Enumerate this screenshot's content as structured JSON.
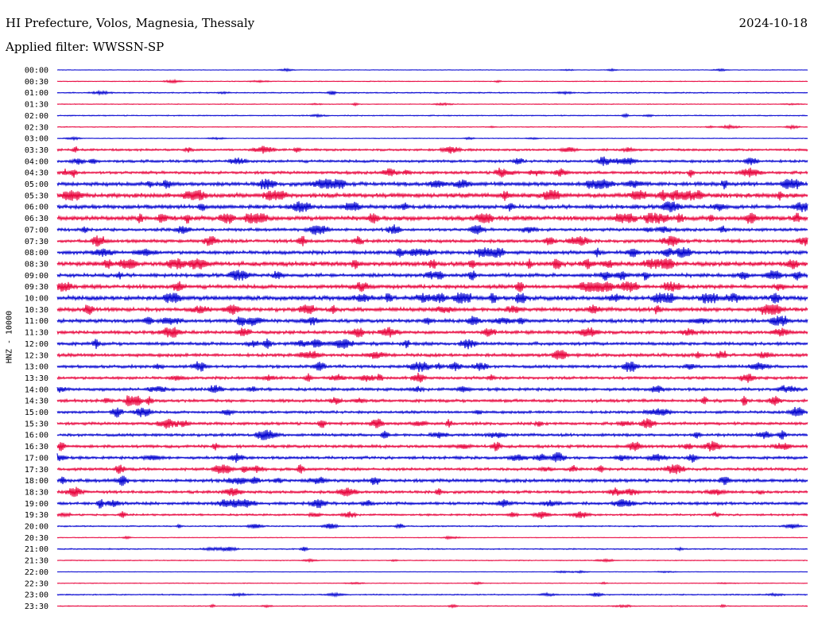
{
  "header": {
    "title": "HI Prefecture, Volos, Magnesia, Thessaly",
    "date": "2024-10-18",
    "filter": "Applied filter: WWSSN-SP"
  },
  "chart_data": {
    "type": "line",
    "ylabel": "HNZ - 10000",
    "line_colors": [
      "#0000d0",
      "#e8003a"
    ],
    "rows": [
      {
        "time": "00:00",
        "level": 0.4
      },
      {
        "time": "00:30",
        "level": 0.5
      },
      {
        "time": "01:00",
        "level": 0.8
      },
      {
        "time": "01:30",
        "level": 0.5
      },
      {
        "time": "02:00",
        "level": 0.7
      },
      {
        "time": "02:30",
        "level": 0.6
      },
      {
        "time": "03:00",
        "level": 0.5
      },
      {
        "time": "03:30",
        "level": 1.5
      },
      {
        "time": "04:00",
        "level": 1.8
      },
      {
        "time": "04:30",
        "level": 1.9
      },
      {
        "time": "05:00",
        "level": 2.6
      },
      {
        "time": "05:30",
        "level": 3.0
      },
      {
        "time": "06:00",
        "level": 2.6
      },
      {
        "time": "06:30",
        "level": 3.0
      },
      {
        "time": "07:00",
        "level": 2.0
      },
      {
        "time": "07:30",
        "level": 2.2
      },
      {
        "time": "08:00",
        "level": 2.4
      },
      {
        "time": "08:30",
        "level": 3.0
      },
      {
        "time": "09:00",
        "level": 2.4
      },
      {
        "time": "09:30",
        "level": 2.6
      },
      {
        "time": "10:00",
        "level": 3.0
      },
      {
        "time": "10:30",
        "level": 2.6
      },
      {
        "time": "11:00",
        "level": 2.4
      },
      {
        "time": "11:30",
        "level": 2.2
      },
      {
        "time": "12:00",
        "level": 2.2
      },
      {
        "time": "12:30",
        "level": 2.2
      },
      {
        "time": "13:00",
        "level": 2.0
      },
      {
        "time": "13:30",
        "level": 1.9
      },
      {
        "time": "14:00",
        "level": 2.0
      },
      {
        "time": "14:30",
        "level": 2.0
      },
      {
        "time": "15:00",
        "level": 1.8
      },
      {
        "time": "15:30",
        "level": 1.9
      },
      {
        "time": "16:00",
        "level": 1.9
      },
      {
        "time": "16:30",
        "level": 2.0
      },
      {
        "time": "17:00",
        "level": 1.9
      },
      {
        "time": "17:30",
        "level": 1.9
      },
      {
        "time": "18:00",
        "level": 2.2
      },
      {
        "time": "18:30",
        "level": 1.9
      },
      {
        "time": "19:00",
        "level": 2.0
      },
      {
        "time": "19:30",
        "level": 1.3
      },
      {
        "time": "20:00",
        "level": 0.9
      },
      {
        "time": "20:30",
        "level": 0.5
      },
      {
        "time": "21:00",
        "level": 0.8
      },
      {
        "time": "21:30",
        "level": 0.6
      },
      {
        "time": "22:00",
        "level": 0.4
      },
      {
        "time": "22:30",
        "level": 0.5
      },
      {
        "time": "23:00",
        "level": 0.8
      },
      {
        "time": "23:30",
        "level": 0.6
      }
    ]
  }
}
